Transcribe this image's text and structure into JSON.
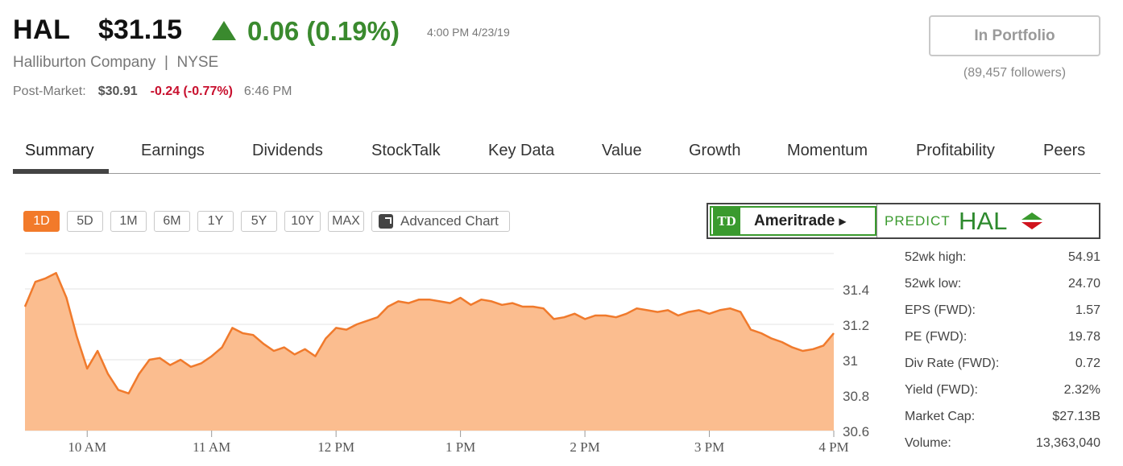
{
  "header": {
    "ticker": "HAL",
    "price": "$31.15",
    "change": "0.06 (0.19%)",
    "change_direction": "up",
    "change_color": "#3a8a2e",
    "timestamp": "4:00 PM 4/23/19",
    "company": "Halliburton Company  |  NYSE",
    "post_market": {
      "label": "Post-Market:",
      "price": "$30.91",
      "change": "-0.24 (-0.77%)",
      "change_color": "#c8102e",
      "time": "6:46 PM"
    },
    "portfolio_button": "In Portfolio",
    "followers": "(89,457 followers)"
  },
  "tabs": [
    {
      "label": "Summary",
      "active": true
    },
    {
      "label": "Earnings"
    },
    {
      "label": "Dividends"
    },
    {
      "label": "StockTalk"
    },
    {
      "label": "Key Data"
    },
    {
      "label": "Value"
    },
    {
      "label": "Growth"
    },
    {
      "label": "Momentum"
    },
    {
      "label": "Profitability"
    },
    {
      "label": "Peers"
    }
  ],
  "chart_controls": {
    "ranges": [
      "1D",
      "5D",
      "1M",
      "6M",
      "1Y",
      "5Y",
      "10Y",
      "MAX"
    ],
    "active_range": "1D",
    "advanced_chart": "Advanced Chart",
    "accent_color": "#f27a2a"
  },
  "ad": {
    "logo": "TD",
    "brand": "Ameritrade",
    "predict": "PREDICT",
    "ticker": "HAL"
  },
  "stats": [
    {
      "label": "52wk high:",
      "value": "54.91"
    },
    {
      "label": "52wk low:",
      "value": "24.70"
    },
    {
      "label": "EPS (FWD):",
      "value": "1.57"
    },
    {
      "label": "PE (FWD):",
      "value": "19.78"
    },
    {
      "label": "Div Rate (FWD):",
      "value": "0.72"
    },
    {
      "label": "Yield (FWD):",
      "value": "2.32%"
    },
    {
      "label": "Market Cap:",
      "value": "$27.13B"
    },
    {
      "label": "Volume:",
      "value": "13,363,040"
    }
  ],
  "chart_data": {
    "type": "area",
    "x_ticks": [
      "10 AM",
      "11 AM",
      "12 PM",
      "1 PM",
      "2 PM",
      "3 PM",
      "4 PM"
    ],
    "y_ticks": [
      "31.4",
      "31.2",
      "31",
      "30.8",
      "30.6"
    ],
    "ylim": [
      30.6,
      31.6
    ],
    "grid": true,
    "line_color": "#f07a2c",
    "fill_color": "#fbbd8f",
    "x": [
      "9:30",
      "9:35",
      "9:40",
      "9:45",
      "9:50",
      "9:55",
      "10:00",
      "10:05",
      "10:10",
      "10:15",
      "10:20",
      "10:25",
      "10:30",
      "10:35",
      "10:40",
      "10:45",
      "10:50",
      "10:55",
      "11:00",
      "11:05",
      "11:10",
      "11:15",
      "11:20",
      "11:25",
      "11:30",
      "11:35",
      "11:40",
      "11:45",
      "11:50",
      "11:55",
      "12:00",
      "12:05",
      "12:10",
      "12:15",
      "12:20",
      "12:25",
      "12:30",
      "12:35",
      "12:40",
      "12:45",
      "12:50",
      "12:55",
      "13:00",
      "13:05",
      "13:10",
      "13:15",
      "13:20",
      "13:25",
      "13:30",
      "13:35",
      "13:40",
      "13:45",
      "13:50",
      "13:55",
      "14:00",
      "14:05",
      "14:10",
      "14:15",
      "14:20",
      "14:25",
      "14:30",
      "14:35",
      "14:40",
      "14:45",
      "14:50",
      "14:55",
      "15:00",
      "15:05",
      "15:10",
      "15:15",
      "15:20",
      "15:25",
      "15:30",
      "15:35",
      "15:40",
      "15:45",
      "15:50",
      "15:55",
      "16:00"
    ],
    "y": [
      31.3,
      31.44,
      31.46,
      31.49,
      31.35,
      31.13,
      30.95,
      31.05,
      30.92,
      30.83,
      30.81,
      30.92,
      31.0,
      31.01,
      30.97,
      31.0,
      30.96,
      30.98,
      31.02,
      31.07,
      31.18,
      31.15,
      31.14,
      31.09,
      31.05,
      31.07,
      31.03,
      31.06,
      31.02,
      31.12,
      31.18,
      31.17,
      31.2,
      31.22,
      31.24,
      31.3,
      31.33,
      31.32,
      31.34,
      31.34,
      31.33,
      31.32,
      31.35,
      31.31,
      31.34,
      31.33,
      31.31,
      31.32,
      31.3,
      31.3,
      31.29,
      31.23,
      31.24,
      31.26,
      31.23,
      31.25,
      31.25,
      31.24,
      31.26,
      31.29,
      31.28,
      31.27,
      31.28,
      31.25,
      31.27,
      31.28,
      31.26,
      31.28,
      31.29,
      31.27,
      31.17,
      31.15,
      31.12,
      31.1,
      31.07,
      31.05,
      31.06,
      31.08,
      31.15
    ]
  }
}
